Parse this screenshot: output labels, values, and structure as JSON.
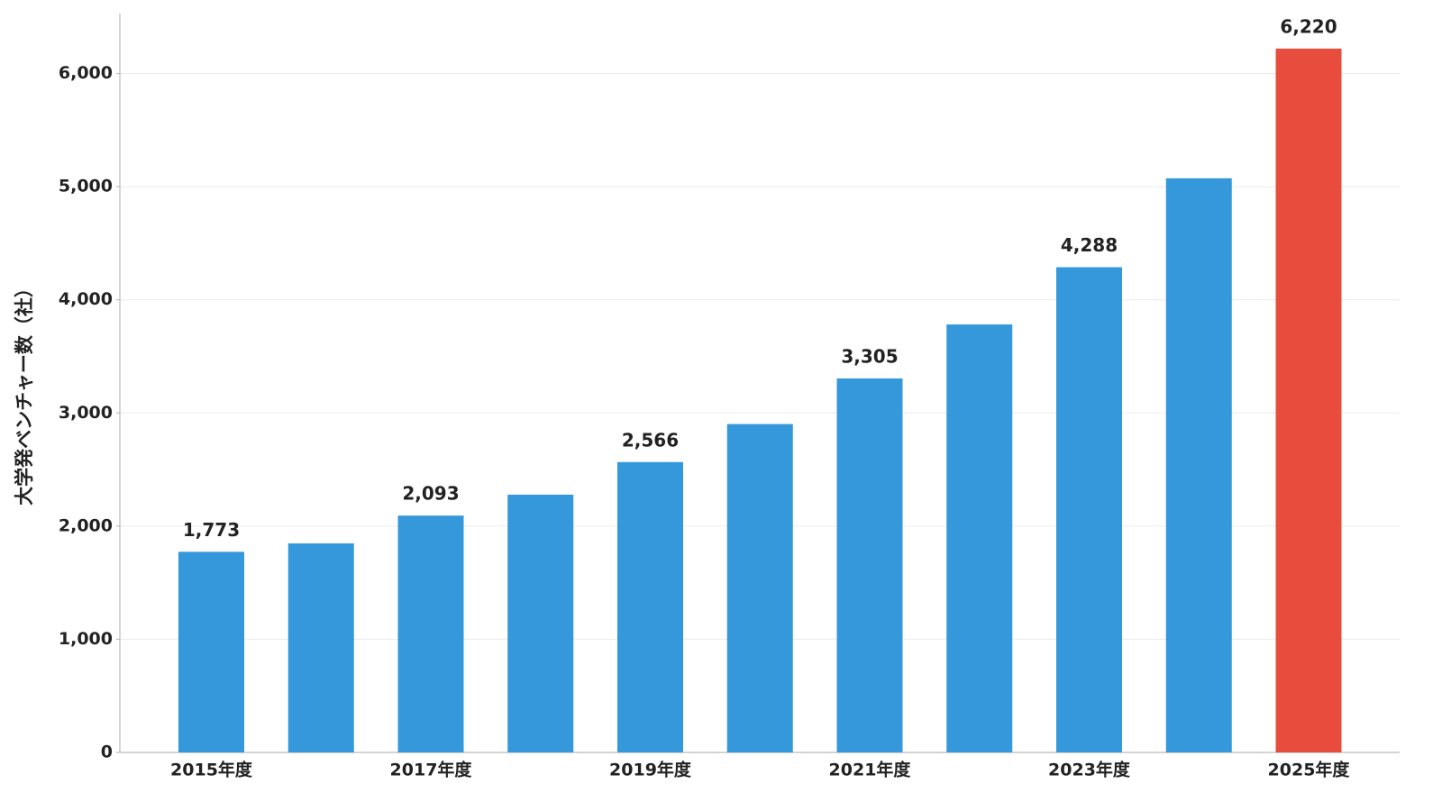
{
  "chart_data": {
    "type": "bar",
    "y_label": "大学発ベンチャー数（社）",
    "categories": [
      "2015年度",
      null,
      "2017年度",
      null,
      "2019年度",
      null,
      "2021年度",
      null,
      "2023年度",
      null,
      "2025年度"
    ],
    "values": [
      1773,
      1847,
      2093,
      2278,
      2566,
      2902,
      3305,
      3782,
      4288,
      5074,
      6220
    ],
    "value_labels": [
      "1,773",
      null,
      "2,093",
      null,
      "2,566",
      null,
      "3,305",
      null,
      "4,288",
      null,
      "6,220"
    ],
    "colors": [
      "#3498db",
      "#3498db",
      "#3498db",
      "#3498db",
      "#3498db",
      "#3498db",
      "#3498db",
      "#3498db",
      "#3498db",
      "#3498db",
      "#e74c3c"
    ],
    "ylim": [
      0,
      6530
    ],
    "yticks": [
      0,
      {
        "value": 1000,
        "label": "1,000"
      },
      {
        "value": 2000,
        "label": "2,000"
      },
      {
        "value": 3000,
        "label": "3,000"
      },
      {
        "value": 4000,
        "label": "4,000"
      },
      {
        "value": 5000,
        "label": "5,000"
      },
      {
        "value": 6000,
        "label": "6,000"
      }
    ],
    "grid": true
  }
}
